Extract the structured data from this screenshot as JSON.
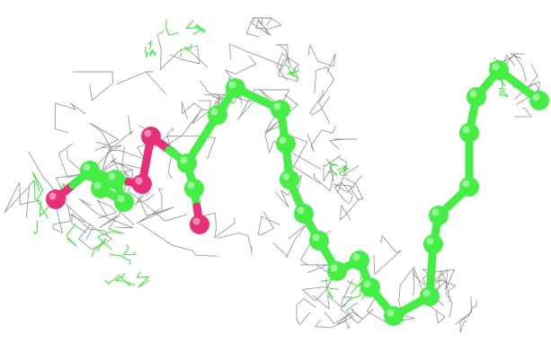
{
  "figure": {
    "background": "#ffffff",
    "colors": {
      "density_mesh_grey": "#8a8a8a",
      "density_mesh_green": "#33e833",
      "carbon_atom_green": "#44ee44",
      "oxygen_atom_pink": "#e8307a"
    },
    "atoms": {
      "carbon_count": 27,
      "oxygen_count": 4
    }
  }
}
